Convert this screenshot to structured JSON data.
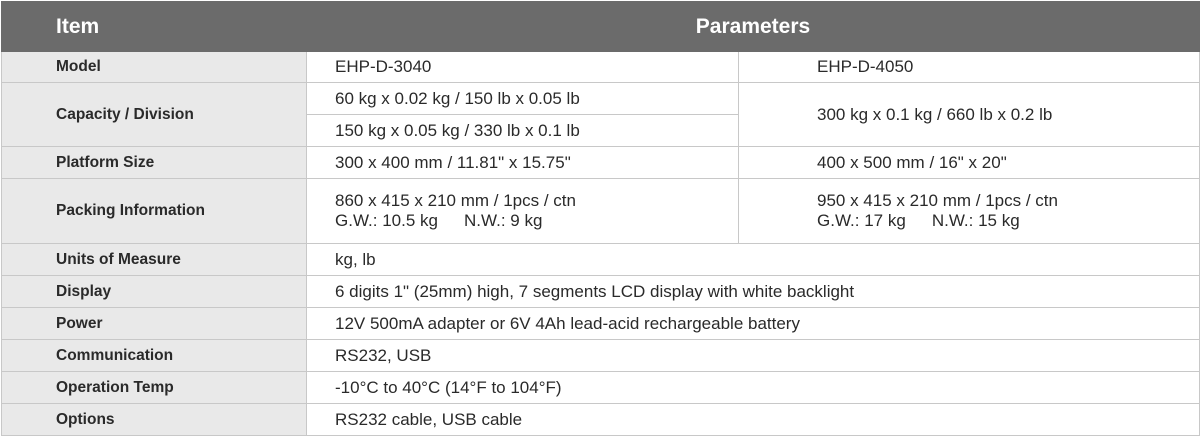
{
  "header": {
    "item": "Item",
    "parameters": "Parameters"
  },
  "rows": {
    "model": {
      "label": "Model",
      "a": "EHP-D-3040",
      "b": "EHP-D-4050"
    },
    "capacity": {
      "label": "Capacity / Division",
      "a1": "60 kg x 0.02 kg / 150 lb x 0.05 lb",
      "a2": "150 kg x 0.05 kg / 330 lb x 0.1 lb",
      "b": "300 kg x 0.1 kg / 660 lb x 0.2 lb"
    },
    "platform": {
      "label": "Platform Size",
      "a": "300 x 400 mm / 11.81\" x 15.75\"",
      "b": "400 x 500 mm / 16\" x 20\""
    },
    "packing": {
      "label": "Packing Information",
      "a_line1": "860 x 415 x 210 mm / 1pcs / ctn",
      "a_gw": "G.W.: 10.5 kg",
      "a_nw": "N.W.: 9 kg",
      "b_line1": "950 x 415 x 210 mm / 1pcs / ctn",
      "b_gw": "G.W.: 17 kg",
      "b_nw": "N.W.: 15 kg"
    },
    "units": {
      "label": "Units of Measure",
      "value": "kg, lb"
    },
    "display": {
      "label": "Display",
      "value": "6 digits 1\" (25mm) high, 7 segments LCD display with white backlight"
    },
    "power": {
      "label": "Power",
      "value": "12V 500mA adapter or 6V 4Ah lead-acid rechargeable battery"
    },
    "communication": {
      "label": "Communication",
      "value": "RS232, USB"
    },
    "temp": {
      "label": "Operation Temp",
      "value": "-10°C to 40°C (14°F to 104°F)"
    },
    "options": {
      "label": "Options",
      "value": "RS232 cable, USB cable"
    }
  }
}
